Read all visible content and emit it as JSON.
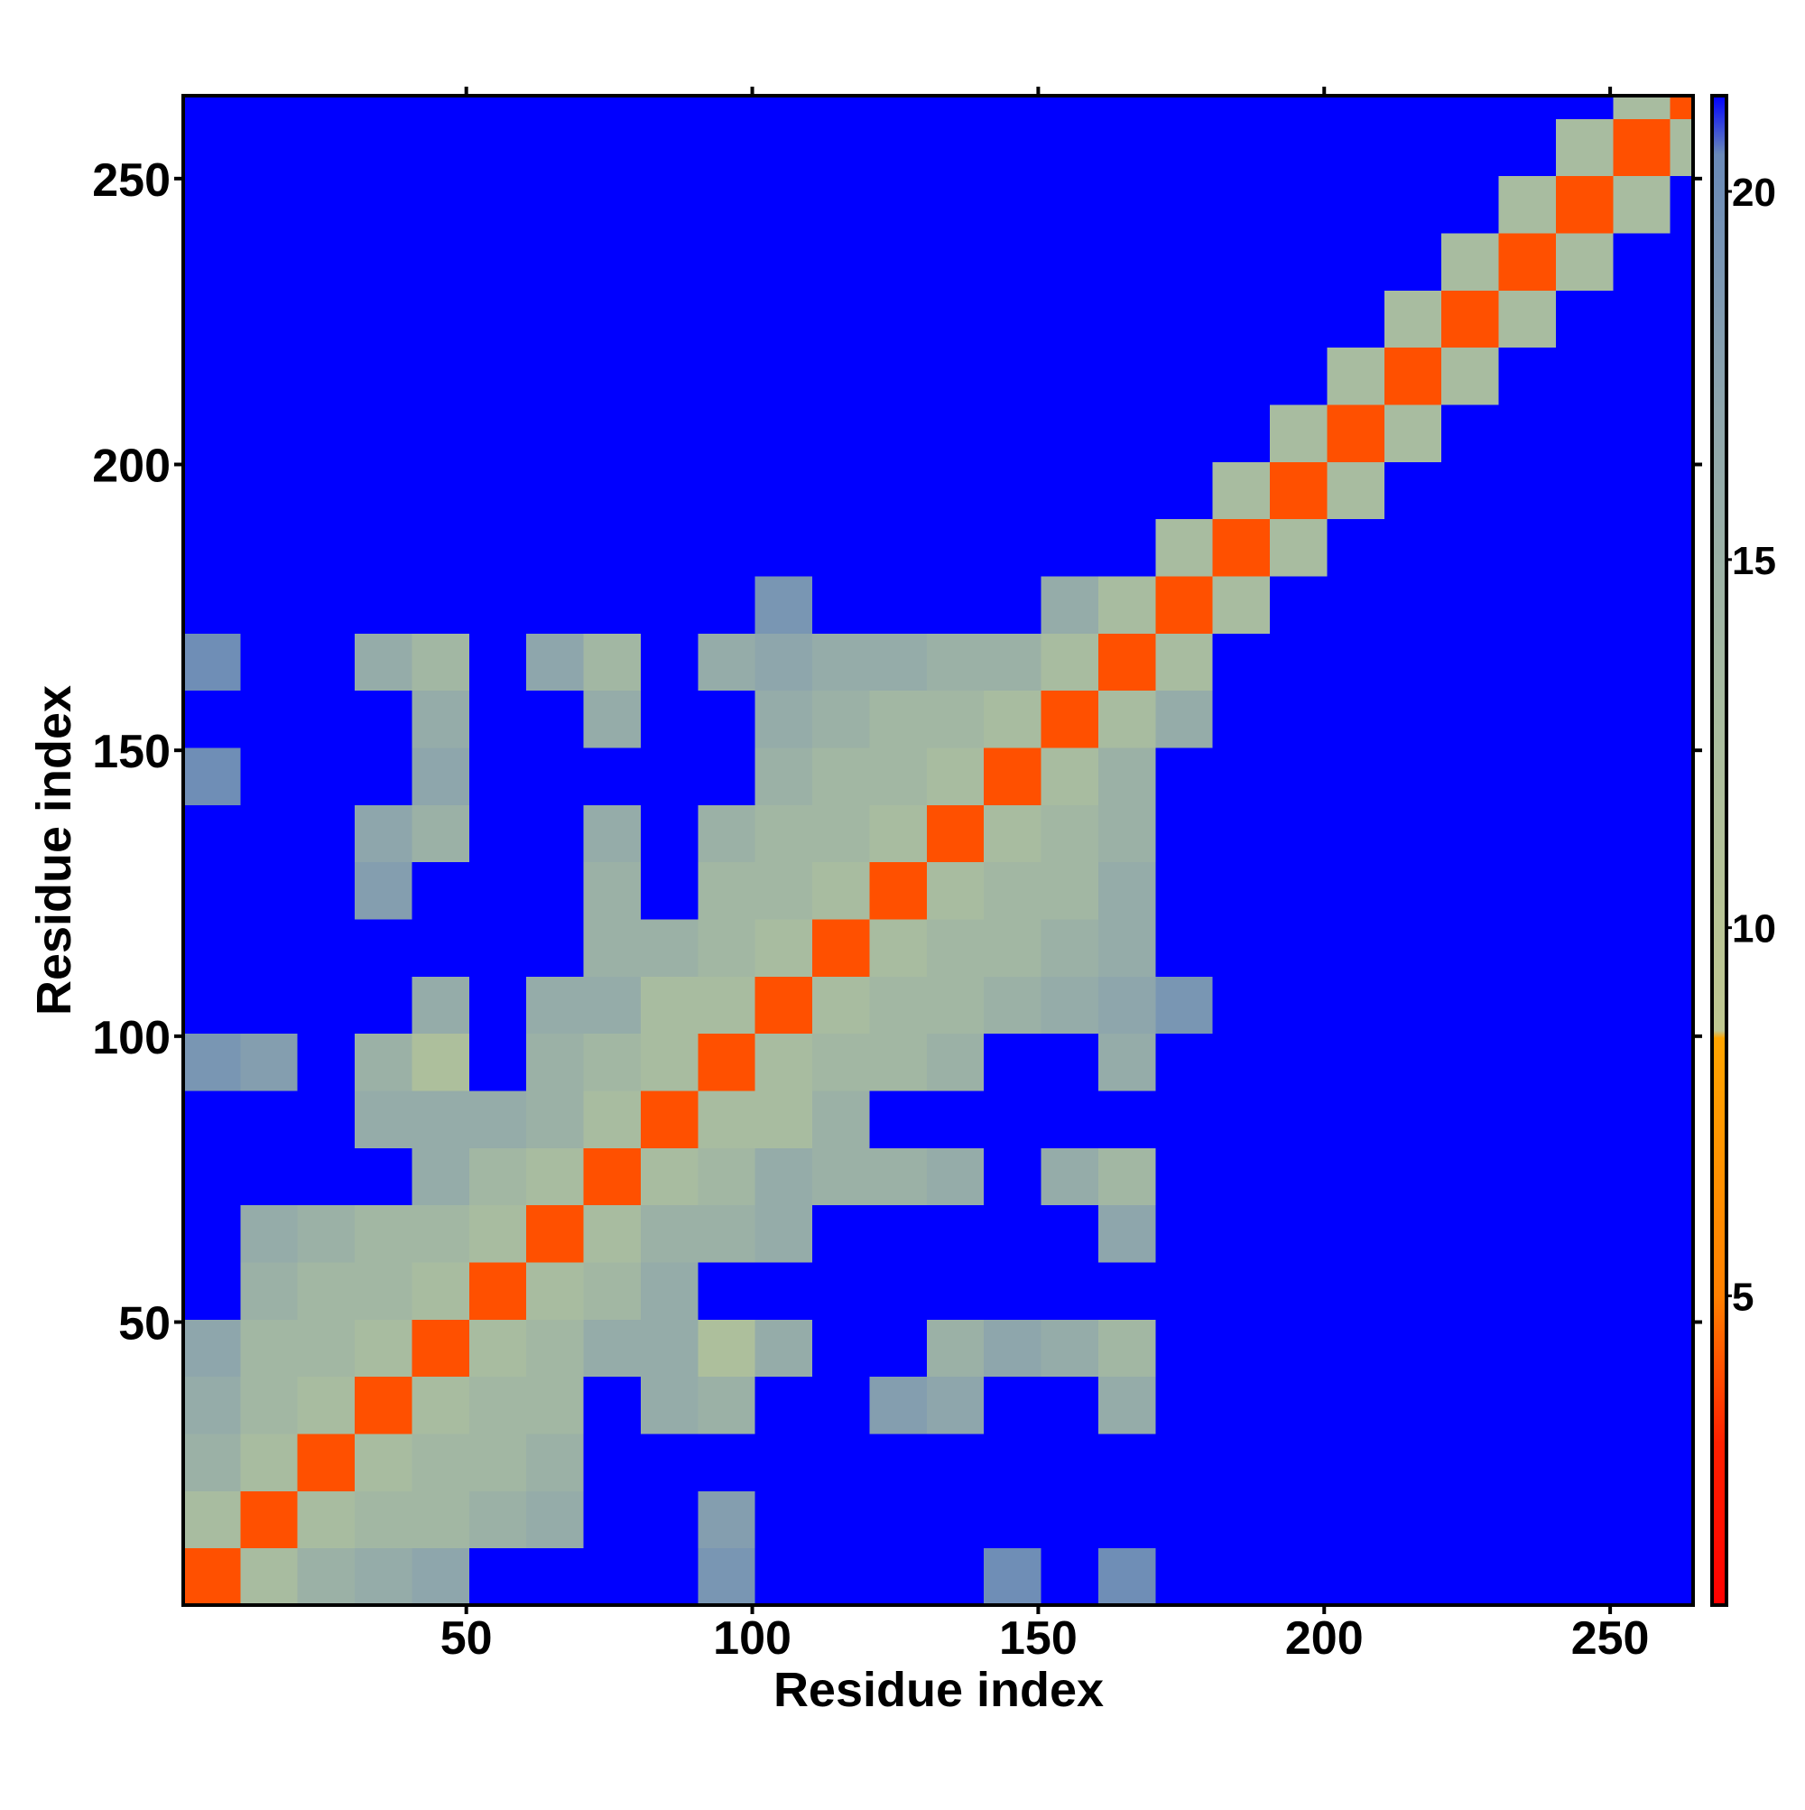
{
  "chart_data": {
    "type": "heatmap",
    "xlabel": "Residue index",
    "ylabel": "Residue index",
    "xlim": [
      0.5,
      264.5
    ],
    "ylim": [
      0.5,
      264.5
    ],
    "xticks": [
      50,
      100,
      150,
      200,
      250
    ],
    "yticks": [
      50,
      100,
      150,
      200,
      250
    ],
    "xbins": [
      0.5,
      10.5,
      20.5,
      30.5,
      40.5,
      50.5,
      60.5,
      70.5,
      80.5,
      90.5,
      100.5,
      110.5,
      120.5,
      130.5,
      140.5,
      150.5,
      160.5,
      170.5,
      180.5,
      190.5,
      200.5,
      210.5,
      220.5,
      230.5,
      240.5,
      250.5,
      260.5,
      264.5
    ],
    "ybins": [
      0.5,
      10.5,
      20.5,
      30.5,
      40.5,
      50.5,
      60.5,
      70.5,
      80.5,
      90.5,
      100.5,
      110.5,
      120.5,
      130.5,
      140.5,
      150.5,
      160.5,
      170.5,
      180.5,
      190.5,
      200.5,
      210.5,
      220.5,
      230.5,
      240.5,
      250.5,
      260.5,
      264.5
    ],
    "zlim": [
      0.8,
      21.3
    ],
    "zticks": [
      5,
      10,
      15,
      20
    ],
    "colorscale": [
      [
        0.8,
        "#ff0000"
      ],
      [
        3,
        "#ff2000"
      ],
      [
        5,
        "#ff8000"
      ],
      [
        8.5,
        "#ffa500"
      ],
      [
        8.6,
        "#c0c890"
      ],
      [
        13,
        "#a8bca0"
      ],
      [
        17,
        "#8ea6ac"
      ],
      [
        20.5,
        "#6a8ab8"
      ],
      [
        21.3,
        "#0000ff"
      ]
    ],
    "values": [
      [
        4,
        13,
        15,
        16,
        17,
        21.3,
        21.3,
        21.3,
        21.3,
        19,
        21.3,
        21.3,
        21.3,
        21.3,
        20,
        21.3,
        20,
        21.3,
        21.3,
        21.3,
        21.3,
        21.3,
        21.3,
        21.3,
        21.3,
        21.3,
        21.3
      ],
      [
        13,
        4,
        13,
        14,
        14,
        15,
        16,
        21.3,
        21.3,
        18,
        21.3,
        21.3,
        21.3,
        21.3,
        21.3,
        21.3,
        21.3,
        21.3,
        21.3,
        21.3,
        21.3,
        21.3,
        21.3,
        21.3,
        21.3,
        21.3,
        21.3
      ],
      [
        15,
        13,
        4,
        13,
        14,
        14,
        15,
        21.3,
        21.3,
        21.3,
        21.3,
        21.3,
        21.3,
        21.3,
        21.3,
        21.3,
        21.3,
        21.3,
        21.3,
        21.3,
        21.3,
        21.3,
        21.3,
        21.3,
        21.3,
        21.3,
        21.3
      ],
      [
        16,
        14,
        13,
        4,
        13,
        14,
        14,
        21.3,
        16,
        15,
        21.3,
        21.3,
        18,
        17,
        21.3,
        21.3,
        16,
        21.3,
        21.3,
        21.3,
        21.3,
        21.3,
        21.3,
        21.3,
        21.3,
        21.3,
        21.3
      ],
      [
        17,
        14,
        14,
        13,
        4,
        13,
        14,
        16,
        16,
        12,
        16,
        21.3,
        21.3,
        15,
        17,
        16,
        14,
        21.3,
        21.3,
        21.3,
        21.3,
        21.3,
        21.3,
        21.3,
        21.3,
        21.3,
        21.3
      ],
      [
        21.3,
        15,
        14,
        14,
        13,
        4,
        13,
        14,
        16,
        21.3,
        21.3,
        21.3,
        21.3,
        21.3,
        21.3,
        21.3,
        21.3,
        21.3,
        21.3,
        21.3,
        21.3,
        21.3,
        21.3,
        21.3,
        21.3,
        21.3,
        21.3
      ],
      [
        21.3,
        16,
        15,
        14,
        14,
        13,
        4,
        13,
        15,
        15,
        16,
        21.3,
        21.3,
        21.3,
        21.3,
        21.3,
        17,
        21.3,
        21.3,
        21.3,
        21.3,
        21.3,
        21.3,
        21.3,
        21.3,
        21.3,
        21.3
      ],
      [
        21.3,
        21.3,
        21.3,
        21.3,
        16,
        14,
        13,
        4,
        13,
        14,
        16,
        15,
        15,
        16,
        21.3,
        16,
        14,
        21.3,
        21.3,
        21.3,
        21.3,
        21.3,
        21.3,
        21.3,
        21.3,
        21.3,
        21.3
      ],
      [
        21.3,
        21.3,
        21.3,
        16,
        16,
        16,
        15,
        13,
        4,
        13,
        13,
        15,
        21.3,
        21.3,
        21.3,
        21.3,
        21.3,
        21.3,
        21.3,
        21.3,
        21.3,
        21.3,
        21.3,
        21.3,
        21.3,
        21.3,
        21.3
      ],
      [
        19,
        18,
        21.3,
        15,
        12,
        21.3,
        15,
        14,
        13,
        4,
        13,
        14,
        14,
        15,
        21.3,
        21.3,
        16,
        21.3,
        21.3,
        21.3,
        21.3,
        21.3,
        21.3,
        21.3,
        21.3,
        21.3,
        21.3
      ],
      [
        21.3,
        21.3,
        21.3,
        21.3,
        16,
        21.3,
        16,
        16,
        13,
        13,
        4,
        13,
        14,
        14,
        15,
        16,
        17,
        19,
        21.3,
        21.3,
        21.3,
        21.3,
        21.3,
        21.3,
        21.3,
        21.3,
        21.3
      ],
      [
        21.3,
        21.3,
        21.3,
        21.3,
        21.3,
        21.3,
        21.3,
        15,
        15,
        14,
        13,
        4,
        13,
        14,
        14,
        15,
        16,
        21.3,
        21.3,
        21.3,
        21.3,
        21.3,
        21.3,
        21.3,
        21.3,
        21.3,
        21.3
      ],
      [
        21.3,
        21.3,
        21.3,
        18,
        21.3,
        21.3,
        21.3,
        15,
        21.3,
        14,
        14,
        13,
        4,
        13,
        14,
        14,
        16,
        21.3,
        21.3,
        21.3,
        21.3,
        21.3,
        21.3,
        21.3,
        21.3,
        21.3,
        21.3
      ],
      [
        21.3,
        21.3,
        21.3,
        17,
        15,
        21.3,
        21.3,
        16,
        21.3,
        15,
        14,
        14,
        13,
        4,
        13,
        14,
        15,
        21.3,
        21.3,
        21.3,
        21.3,
        21.3,
        21.3,
        21.3,
        21.3,
        21.3,
        21.3
      ],
      [
        20,
        21.3,
        21.3,
        21.3,
        17,
        21.3,
        21.3,
        21.3,
        21.3,
        21.3,
        15,
        14,
        14,
        13,
        4,
        13,
        15,
        21.3,
        21.3,
        21.3,
        21.3,
        21.3,
        21.3,
        21.3,
        21.3,
        21.3,
        21.3
      ],
      [
        21.3,
        21.3,
        21.3,
        21.3,
        16,
        21.3,
        21.3,
        16,
        21.3,
        21.3,
        16,
        15,
        14,
        14,
        13,
        4,
        13,
        16,
        21.3,
        21.3,
        21.3,
        21.3,
        21.3,
        21.3,
        21.3,
        21.3,
        21.3
      ],
      [
        20,
        21.3,
        21.3,
        16,
        14,
        21.3,
        17,
        14,
        21.3,
        16,
        17,
        16,
        16,
        15,
        15,
        13,
        4,
        13,
        21.3,
        21.3,
        21.3,
        21.3,
        21.3,
        21.3,
        21.3,
        21.3,
        21.3
      ],
      [
        21.3,
        21.3,
        21.3,
        21.3,
        21.3,
        21.3,
        21.3,
        21.3,
        21.3,
        21.3,
        19,
        21.3,
        21.3,
        21.3,
        21.3,
        16,
        13,
        4,
        13,
        21.3,
        21.3,
        21.3,
        21.3,
        21.3,
        21.3,
        21.3,
        21.3
      ],
      [
        21.3,
        21.3,
        21.3,
        21.3,
        21.3,
        21.3,
        21.3,
        21.3,
        21.3,
        21.3,
        21.3,
        21.3,
        21.3,
        21.3,
        21.3,
        21.3,
        21.3,
        13,
        4,
        13,
        21.3,
        21.3,
        21.3,
        21.3,
        21.3,
        21.3,
        21.3
      ],
      [
        21.3,
        21.3,
        21.3,
        21.3,
        21.3,
        21.3,
        21.3,
        21.3,
        21.3,
        21.3,
        21.3,
        21.3,
        21.3,
        21.3,
        21.3,
        21.3,
        21.3,
        21.3,
        13,
        4,
        13,
        21.3,
        21.3,
        21.3,
        21.3,
        21.3,
        21.3
      ],
      [
        21.3,
        21.3,
        21.3,
        21.3,
        21.3,
        21.3,
        21.3,
        21.3,
        21.3,
        21.3,
        21.3,
        21.3,
        21.3,
        21.3,
        21.3,
        21.3,
        21.3,
        21.3,
        21.3,
        13,
        4,
        13,
        21.3,
        21.3,
        21.3,
        21.3,
        21.3
      ],
      [
        21.3,
        21.3,
        21.3,
        21.3,
        21.3,
        21.3,
        21.3,
        21.3,
        21.3,
        21.3,
        21.3,
        21.3,
        21.3,
        21.3,
        21.3,
        21.3,
        21.3,
        21.3,
        21.3,
        21.3,
        13,
        4,
        13,
        21.3,
        21.3,
        21.3,
        21.3
      ],
      [
        21.3,
        21.3,
        21.3,
        21.3,
        21.3,
        21.3,
        21.3,
        21.3,
        21.3,
        21.3,
        21.3,
        21.3,
        21.3,
        21.3,
        21.3,
        21.3,
        21.3,
        21.3,
        21.3,
        21.3,
        21.3,
        13,
        4,
        13,
        21.3,
        21.3,
        21.3
      ],
      [
        21.3,
        21.3,
        21.3,
        21.3,
        21.3,
        21.3,
        21.3,
        21.3,
        21.3,
        21.3,
        21.3,
        21.3,
        21.3,
        21.3,
        21.3,
        21.3,
        21.3,
        21.3,
        21.3,
        21.3,
        21.3,
        21.3,
        13,
        4,
        13,
        21.3,
        21.3
      ],
      [
        21.3,
        21.3,
        21.3,
        21.3,
        21.3,
        21.3,
        21.3,
        21.3,
        21.3,
        21.3,
        21.3,
        21.3,
        21.3,
        21.3,
        21.3,
        21.3,
        21.3,
        21.3,
        21.3,
        21.3,
        21.3,
        21.3,
        21.3,
        13,
        4,
        13,
        21.3
      ],
      [
        21.3,
        21.3,
        21.3,
        21.3,
        21.3,
        21.3,
        21.3,
        21.3,
        21.3,
        21.3,
        21.3,
        21.3,
        21.3,
        21.3,
        21.3,
        21.3,
        21.3,
        21.3,
        21.3,
        21.3,
        21.3,
        21.3,
        21.3,
        21.3,
        13,
        4,
        13
      ],
      [
        21.3,
        21.3,
        21.3,
        21.3,
        21.3,
        21.3,
        21.3,
        21.3,
        21.3,
        21.3,
        21.3,
        21.3,
        21.3,
        21.3,
        21.3,
        21.3,
        21.3,
        21.3,
        21.3,
        21.3,
        21.3,
        21.3,
        21.3,
        21.3,
        21.3,
        13,
        4
      ]
    ]
  }
}
